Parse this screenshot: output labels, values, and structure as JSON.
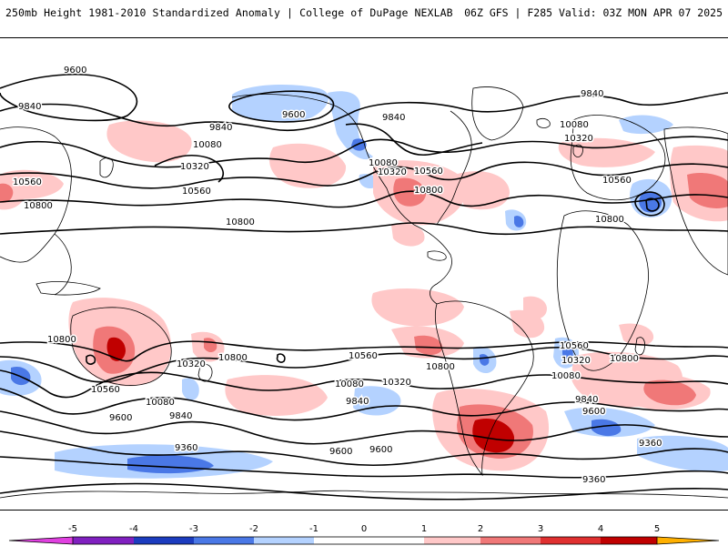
{
  "header": {
    "title": "250mb Height 1981-2010 Standardized Anomaly | College of DuPage NEXLAB",
    "run_info": "06Z GFS | F285 Valid: 03Z MON APR 07 2025"
  },
  "colors": {
    "neg5": "#e040e0",
    "neg4": "#8020c0",
    "neg3": "#1c3cbf",
    "neg2": "#4a78e6",
    "neg1": "#b4d2ff",
    "zero": "#ffffff",
    "pos1": "#ffc8c8",
    "pos2": "#f07878",
    "pos3": "#e03030",
    "pos4": "#c00000",
    "pos5": "#ffb000",
    "contour": "#000000",
    "coast": "#000000"
  },
  "colorbar": {
    "ticks": [
      "-5",
      "-4",
      "-3",
      "-2",
      "-1",
      "0",
      "1",
      "2",
      "3",
      "4",
      "5"
    ]
  },
  "contour_labels": [
    {
      "text": "9600",
      "pos": "north-pacific"
    },
    {
      "text": "9840",
      "pos": "north-pacific-west"
    },
    {
      "text": "9600",
      "pos": "north-america-low"
    },
    {
      "text": "9840",
      "pos": "north-america"
    },
    {
      "text": "9840",
      "pos": "north-atlantic"
    },
    {
      "text": "9840",
      "pos": "arctic-europe"
    },
    {
      "text": "10080",
      "pos": "pacific-1"
    },
    {
      "text": "10320",
      "pos": "pacific-2"
    },
    {
      "text": "10080",
      "pos": "north-america-2"
    },
    {
      "text": "10320",
      "pos": "north-america-3"
    },
    {
      "text": "10560",
      "pos": "atlantic"
    },
    {
      "text": "10800",
      "pos": "gulf"
    },
    {
      "text": "10080",
      "pos": "europe"
    },
    {
      "text": "10320",
      "pos": "europe-2"
    },
    {
      "text": "10560",
      "pos": "mediterranean"
    },
    {
      "text": "10800",
      "pos": "africa-north"
    },
    {
      "text": "10560",
      "pos": "pacific-west"
    },
    {
      "text": "10800",
      "pos": "pacific-west-2"
    },
    {
      "text": "10560",
      "pos": "pacific-central"
    },
    {
      "text": "10800",
      "pos": "pacific-central-2"
    },
    {
      "text": "10800",
      "pos": "south-pacific-west"
    },
    {
      "text": "10560",
      "pos": "south-pacific-west-2"
    },
    {
      "text": "10800",
      "pos": "south-pacific"
    },
    {
      "text": "10320",
      "pos": "south-pacific-2"
    },
    {
      "text": "10080",
      "pos": "south-pacific-3"
    },
    {
      "text": "9840",
      "pos": "south-pacific-4"
    },
    {
      "text": "9600",
      "pos": "south-pacific-5"
    },
    {
      "text": "9360",
      "pos": "south-pacific-6"
    },
    {
      "text": "10560",
      "pos": "south-america"
    },
    {
      "text": "10800",
      "pos": "south-america-2"
    },
    {
      "text": "10320",
      "pos": "south-america-3"
    },
    {
      "text": "10080",
      "pos": "south-america-4"
    },
    {
      "text": "9840",
      "pos": "south-america-5"
    },
    {
      "text": "9600",
      "pos": "south-america-6"
    },
    {
      "text": "9600",
      "pos": "south-america-7"
    },
    {
      "text": "10560",
      "pos": "south-atlantic"
    },
    {
      "text": "10320",
      "pos": "south-atlantic-2"
    },
    {
      "text": "10080",
      "pos": "south-atlantic-3"
    },
    {
      "text": "9840",
      "pos": "south-atlantic-4"
    },
    {
      "text": "9600",
      "pos": "south-atlantic-5"
    },
    {
      "text": "10800",
      "pos": "south-atlantic-6"
    },
    {
      "text": "9360",
      "pos": "south-indian"
    },
    {
      "text": "9360",
      "pos": "antarctic"
    }
  ]
}
